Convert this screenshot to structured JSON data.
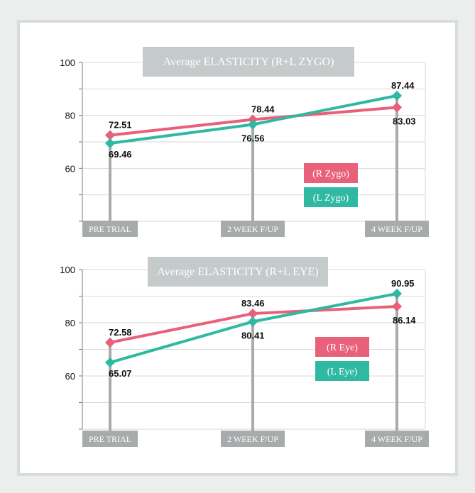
{
  "colors": {
    "background": "#eceeee",
    "panel": "#ffffff",
    "series_right": "#e8607a",
    "series_left": "#2fb9a3",
    "pillar": "#a8abab",
    "label_box": "#a8abab",
    "title_box": "#c5caca",
    "grid": "#d8dada"
  },
  "chart_data": [
    {
      "type": "line",
      "title": "Average ELASTICITY (R+L ZYGO)",
      "categories": [
        "PRE TRIAL",
        "2 WEEK F/UP",
        "4 WEEK F/UP"
      ],
      "series": [
        {
          "name": "(R Zygo)",
          "values": [
            72.51,
            78.44,
            83.03
          ],
          "labels": [
            "72.51",
            "78.44",
            "83.03"
          ]
        },
        {
          "name": "(L Zygo)",
          "values": [
            69.46,
            76.56,
            87.44
          ],
          "labels": [
            "69.46",
            "76.56",
            "87.44"
          ]
        }
      ],
      "yticks": [
        "60",
        "80",
        "100"
      ],
      "ylim": [
        40,
        100
      ],
      "grid": true,
      "legend": "center-right"
    },
    {
      "type": "line",
      "title": "Average ELASTICITY (R+L EYE)",
      "categories": [
        "PRE TRIAL",
        "2 WEEK F/UP",
        "4 WEEK F/UP"
      ],
      "series": [
        {
          "name": "(R Eye)",
          "values": [
            72.58,
            83.46,
            86.14
          ],
          "labels": [
            "72.58",
            "83.46",
            "86.14"
          ]
        },
        {
          "name": "(L Eye)",
          "values": [
            65.07,
            80.41,
            90.95
          ],
          "labels": [
            "65.07",
            "80.41",
            "90.95"
          ]
        }
      ],
      "yticks": [
        "60",
        "80",
        "100"
      ],
      "ylim": [
        40,
        100
      ],
      "grid": true,
      "legend": "center-right"
    }
  ]
}
